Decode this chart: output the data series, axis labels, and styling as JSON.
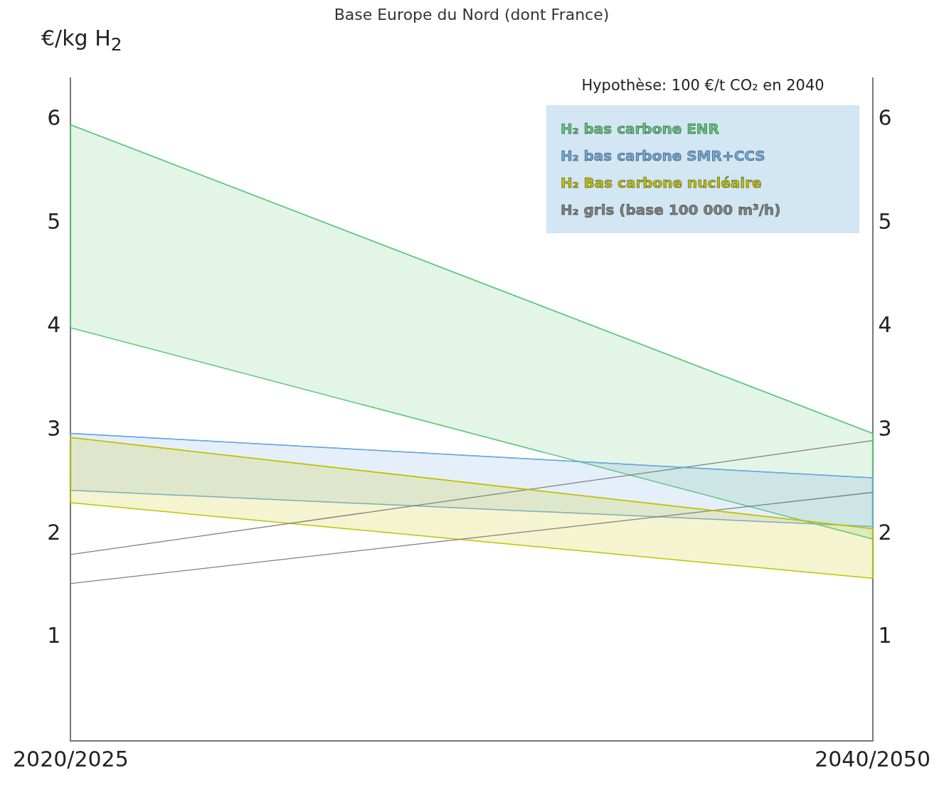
{
  "chart_data": {
    "type": "line",
    "title": "Base Europe du Nord (dont France)",
    "ylabel": "€/kg H$_{2}$",
    "categories": [
      "2020/2025",
      "2040/2050"
    ],
    "series": [
      {
        "name": "H₂ bas carbone ENR",
        "color": "#5cc97a",
        "values": [
          5.95,
          2.97
        ],
        "lower": [
          3.99,
          1.95
        ],
        "upper": [
          5.95,
          2.97
        ]
      },
      {
        "name": "H₂ bas carbone SMR+CCS",
        "color": "#6ea8e0",
        "values": [
          2.97,
          2.54
        ],
        "lower": [
          2.42,
          2.07
        ],
        "upper": [
          2.97,
          2.54
        ]
      },
      {
        "name": "H₂ Bas carbone nucléaire",
        "color": "#c2c200",
        "values": [
          2.93,
          2.05
        ],
        "lower": [
          2.3,
          1.57
        ],
        "upper": [
          2.93,
          2.05
        ]
      },
      {
        "name": "H₂ gris (base 100 000 m³/h)",
        "type": "line",
        "color": "#808080",
        "values": [
          1.8,
          2.9
        ]
      },
      {
        "type": "line",
        "color": "#808080",
        "values": [
          1.52,
          2.4
        ]
      }
    ],
    "ylim": [
      0,
      6.4
    ],
    "yticks": [
      1,
      2,
      3,
      4,
      5,
      6
    ],
    "y2lim": [
      0,
      6.4
    ],
    "y2ticks": [
      1,
      2,
      3,
      4,
      5,
      6
    ],
    "annotations": [
      "Hypothèse: 100 €/t CO₂ en 2040"
    ],
    "legend": "top right"
  }
}
